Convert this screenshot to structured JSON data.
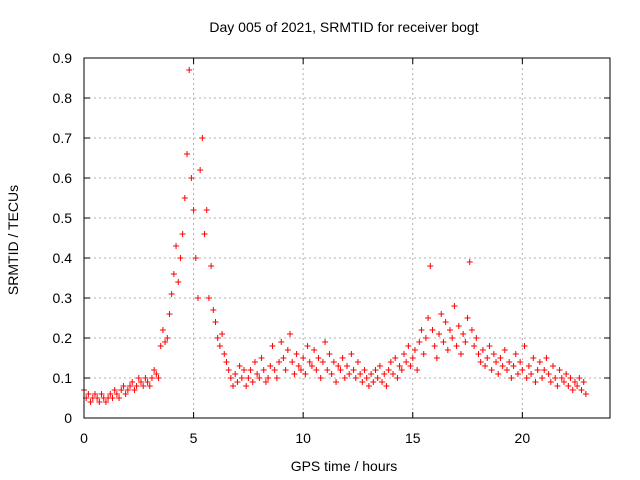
{
  "chart_data": {
    "type": "scatter",
    "title": "Day 005 of 2021, SRMTID for receiver bogt",
    "xlabel": "GPS time / hours",
    "ylabel": "SRMTID / TECUs",
    "xlim": [
      0,
      24
    ],
    "ylim": [
      0,
      0.9
    ],
    "xticks": [
      0,
      5,
      10,
      15,
      20
    ],
    "xtick_labels": [
      "0",
      "5",
      "10",
      "15",
      "20"
    ],
    "yticks": [
      0,
      0.1,
      0.2,
      0.3,
      0.4,
      0.5,
      0.6,
      0.7,
      0.8,
      0.9
    ],
    "ytick_labels": [
      "0",
      "0.1",
      "0.2",
      "0.3",
      "0.4",
      "0.5",
      "0.6",
      "0.7",
      "0.8",
      "0.9"
    ],
    "grid": true,
    "marker": "+",
    "color": "#ff0000",
    "series": [
      {
        "name": "SRMTID",
        "x": [
          0.0,
          0.1,
          0.2,
          0.3,
          0.4,
          0.5,
          0.6,
          0.7,
          0.8,
          0.9,
          1.0,
          1.1,
          1.2,
          1.3,
          1.4,
          1.5,
          1.6,
          1.7,
          1.8,
          1.9,
          2.0,
          2.1,
          2.2,
          2.3,
          2.4,
          2.5,
          2.6,
          2.7,
          2.8,
          2.9,
          3.0,
          3.1,
          3.2,
          3.3,
          3.4,
          3.5,
          3.6,
          3.7,
          3.8,
          3.9,
          4.0,
          4.1,
          4.2,
          4.3,
          4.4,
          4.5,
          4.6,
          4.7,
          4.8,
          4.9,
          5.0,
          5.1,
          5.2,
          5.3,
          5.4,
          5.5,
          5.6,
          5.7,
          5.8,
          5.9,
          6.0,
          6.1,
          6.2,
          6.3,
          6.4,
          6.5,
          6.6,
          6.7,
          6.8,
          6.9,
          7.0,
          7.1,
          7.2,
          7.3,
          7.4,
          7.5,
          7.6,
          7.7,
          7.8,
          7.9,
          8.0,
          8.1,
          8.2,
          8.3,
          8.4,
          8.5,
          8.6,
          8.7,
          8.8,
          8.9,
          9.0,
          9.1,
          9.2,
          9.3,
          9.4,
          9.5,
          9.6,
          9.7,
          9.8,
          9.9,
          10.0,
          10.1,
          10.2,
          10.3,
          10.4,
          10.5,
          10.6,
          10.7,
          10.8,
          10.9,
          11.0,
          11.1,
          11.2,
          11.3,
          11.4,
          11.5,
          11.6,
          11.7,
          11.8,
          11.9,
          12.0,
          12.1,
          12.2,
          12.3,
          12.4,
          12.5,
          12.6,
          12.7,
          12.8,
          12.9,
          13.0,
          13.1,
          13.2,
          13.3,
          13.4,
          13.5,
          13.6,
          13.7,
          13.8,
          13.9,
          14.0,
          14.1,
          14.2,
          14.3,
          14.4,
          14.5,
          14.6,
          14.7,
          14.8,
          14.9,
          15.0,
          15.1,
          15.2,
          15.3,
          15.4,
          15.5,
          15.6,
          15.7,
          15.8,
          15.9,
          16.0,
          16.1,
          16.2,
          16.3,
          16.4,
          16.5,
          16.6,
          16.7,
          16.8,
          16.9,
          17.0,
          17.1,
          17.2,
          17.3,
          17.4,
          17.5,
          17.6,
          17.7,
          17.8,
          17.9,
          18.0,
          18.1,
          18.2,
          18.3,
          18.4,
          18.5,
          18.6,
          18.7,
          18.8,
          18.9,
          19.0,
          19.1,
          19.2,
          19.3,
          19.4,
          19.5,
          19.6,
          19.7,
          19.8,
          19.9,
          20.0,
          20.1,
          20.2,
          20.3,
          20.4,
          20.5,
          20.6,
          20.7,
          20.8,
          20.9,
          21.0,
          21.1,
          21.2,
          21.3,
          21.4,
          21.5,
          21.6,
          21.7,
          21.8,
          21.9,
          22.0,
          22.1,
          22.2,
          22.3,
          22.4,
          22.5,
          22.6,
          22.7,
          22.8,
          22.9
        ],
        "y": [
          0.07,
          0.05,
          0.06,
          0.04,
          0.05,
          0.06,
          0.05,
          0.04,
          0.06,
          0.05,
          0.04,
          0.05,
          0.06,
          0.05,
          0.07,
          0.06,
          0.05,
          0.07,
          0.08,
          0.06,
          0.07,
          0.08,
          0.09,
          0.07,
          0.08,
          0.1,
          0.09,
          0.08,
          0.1,
          0.09,
          0.08,
          0.1,
          0.12,
          0.11,
          0.1,
          0.18,
          0.22,
          0.19,
          0.2,
          0.26,
          0.31,
          0.36,
          0.43,
          0.34,
          0.4,
          0.46,
          0.55,
          0.66,
          0.87,
          0.6,
          0.52,
          0.4,
          0.3,
          0.62,
          0.7,
          0.46,
          0.52,
          0.3,
          0.38,
          0.27,
          0.24,
          0.2,
          0.18,
          0.21,
          0.16,
          0.14,
          0.12,
          0.1,
          0.08,
          0.11,
          0.09,
          0.13,
          0.1,
          0.12,
          0.08,
          0.1,
          0.12,
          0.09,
          0.14,
          0.11,
          0.1,
          0.15,
          0.12,
          0.09,
          0.1,
          0.13,
          0.18,
          0.12,
          0.1,
          0.14,
          0.19,
          0.15,
          0.12,
          0.17,
          0.21,
          0.14,
          0.11,
          0.16,
          0.13,
          0.12,
          0.15,
          0.11,
          0.18,
          0.14,
          0.13,
          0.17,
          0.12,
          0.15,
          0.1,
          0.14,
          0.19,
          0.12,
          0.16,
          0.11,
          0.14,
          0.09,
          0.13,
          0.12,
          0.15,
          0.1,
          0.13,
          0.11,
          0.16,
          0.12,
          0.1,
          0.14,
          0.11,
          0.09,
          0.12,
          0.1,
          0.08,
          0.11,
          0.09,
          0.12,
          0.1,
          0.13,
          0.09,
          0.11,
          0.08,
          0.12,
          0.14,
          0.11,
          0.15,
          0.1,
          0.13,
          0.12,
          0.16,
          0.14,
          0.18,
          0.13,
          0.15,
          0.17,
          0.12,
          0.19,
          0.22,
          0.16,
          0.2,
          0.25,
          0.38,
          0.22,
          0.18,
          0.15,
          0.21,
          0.26,
          0.19,
          0.24,
          0.17,
          0.22,
          0.2,
          0.28,
          0.18,
          0.23,
          0.16,
          0.21,
          0.19,
          0.25,
          0.39,
          0.22,
          0.18,
          0.2,
          0.16,
          0.14,
          0.17,
          0.13,
          0.15,
          0.18,
          0.12,
          0.16,
          0.14,
          0.11,
          0.15,
          0.13,
          0.17,
          0.12,
          0.14,
          0.1,
          0.13,
          0.16,
          0.11,
          0.14,
          0.12,
          0.18,
          0.1,
          0.13,
          0.11,
          0.15,
          0.09,
          0.12,
          0.14,
          0.1,
          0.12,
          0.15,
          0.11,
          0.09,
          0.13,
          0.1,
          0.08,
          0.12,
          0.1,
          0.09,
          0.11,
          0.08,
          0.1,
          0.07,
          0.09,
          0.08,
          0.1,
          0.07,
          0.09,
          0.06
        ]
      }
    ]
  }
}
